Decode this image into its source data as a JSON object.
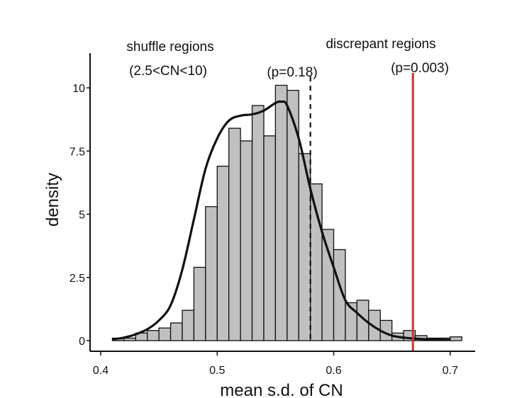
{
  "chart_data": {
    "type": "bar",
    "title": "",
    "xlabel": "mean s.d. of CN",
    "ylabel": "density",
    "xlim": [
      0.4,
      0.72
    ],
    "ylim": [
      0,
      11
    ],
    "x_ticks": [
      0.4,
      0.5,
      0.6,
      0.7
    ],
    "x_tick_labels": [
      "0.4",
      "0.5",
      "0.6",
      "0.7"
    ],
    "y_ticks": [
      0,
      2.5,
      5,
      7.5,
      10
    ],
    "y_tick_labels": [
      "0",
      "2.5",
      "5",
      "7.5",
      "10"
    ],
    "bin_width": 0.01,
    "bin_starts": [
      0.41,
      0.42,
      0.43,
      0.44,
      0.45,
      0.46,
      0.47,
      0.48,
      0.49,
      0.5,
      0.51,
      0.52,
      0.53,
      0.54,
      0.55,
      0.56,
      0.57,
      0.58,
      0.59,
      0.6,
      0.61,
      0.62,
      0.63,
      0.64,
      0.65,
      0.66,
      0.67,
      0.68,
      0.69,
      0.7
    ],
    "values": [
      0.1,
      0.1,
      0.3,
      0.4,
      0.5,
      0.7,
      1.2,
      2.9,
      5.3,
      6.9,
      8.4,
      7.9,
      9.3,
      8.1,
      10.1,
      9.9,
      7.4,
      6.2,
      4.4,
      3.6,
      1.5,
      1.6,
      1.2,
      0.8,
      0.3,
      0.4,
      0.2,
      0.1,
      0.1,
      0.15
    ],
    "density_curve": {
      "x": [
        0.41,
        0.42,
        0.43,
        0.44,
        0.45,
        0.46,
        0.47,
        0.48,
        0.49,
        0.5,
        0.51,
        0.52,
        0.53,
        0.54,
        0.55,
        0.555,
        0.56,
        0.57,
        0.58,
        0.59,
        0.6,
        0.61,
        0.62,
        0.63,
        0.64,
        0.65,
        0.66,
        0.67,
        0.68,
        0.69,
        0.7
      ],
      "y": [
        0.05,
        0.12,
        0.25,
        0.45,
        0.8,
        1.4,
        2.8,
        4.8,
        6.8,
        8.0,
        8.7,
        8.9,
        8.95,
        9.1,
        9.4,
        9.45,
        9.3,
        8.0,
        6.0,
        4.3,
        2.9,
        1.6,
        1.1,
        0.7,
        0.4,
        0.2,
        0.12,
        0.08,
        0.05,
        0.04,
        0.03
      ]
    },
    "reference_lines": [
      {
        "x": 0.58,
        "style": "dashed",
        "color": "#111111",
        "label": "(p=0.18)"
      },
      {
        "x": 0.668,
        "style": "solid",
        "color": "#c0392b",
        "label": "(p=0.003)"
      }
    ],
    "group_labels": [
      {
        "line1": "shuffle regions",
        "line2": "(2.5<CN<10)"
      },
      {
        "line1": "discrepant regions"
      }
    ],
    "bar_color": "#c0c0c0",
    "bar_edge_color": "#111111",
    "curve_color": "#111111",
    "grid": false
  }
}
